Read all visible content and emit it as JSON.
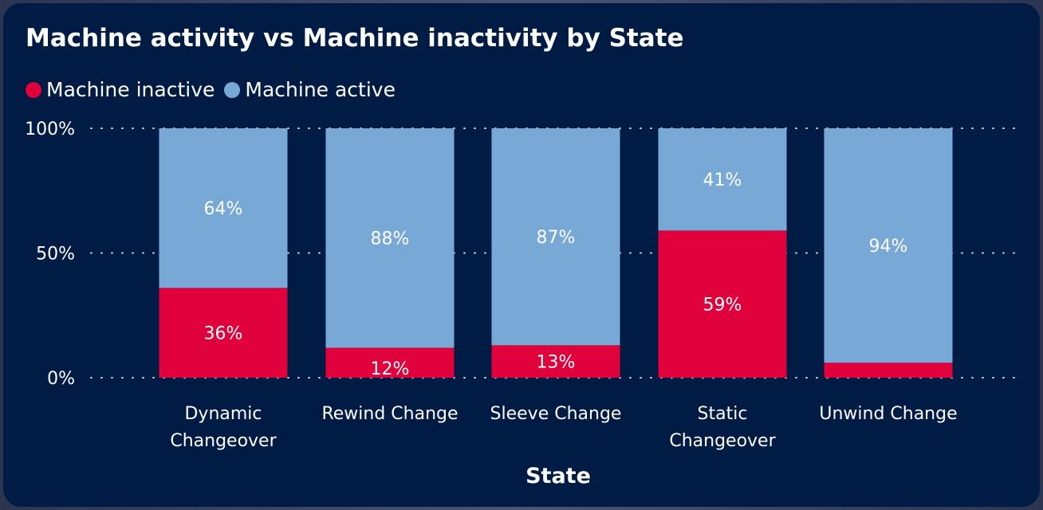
{
  "window": {
    "title": "Machine activity vs Machine inactivity by State"
  },
  "colors": {
    "background": "#001c44",
    "inactive": "#e0003c",
    "active": "#77a8d6",
    "text": "#ffffff",
    "grid": "#c8d2e0"
  },
  "chart_data": {
    "type": "bar",
    "stacked": "percent",
    "title": "Machine activity vs Machine inactivity by State",
    "xlabel": "State",
    "ylabel": "",
    "ylim": [
      0,
      100
    ],
    "yticks": [
      "0%",
      "50%",
      "100%"
    ],
    "ytick_values": [
      0,
      50,
      100
    ],
    "grid": true,
    "legend_position": "top-left",
    "categories": [
      [
        "Dynamic",
        "Changeover"
      ],
      [
        "Rewind Change"
      ],
      [
        "Sleeve Change"
      ],
      [
        "Static",
        "Changeover"
      ],
      [
        "Unwind Change"
      ]
    ],
    "series": [
      {
        "name": "Machine inactive",
        "color": "#e0003c",
        "values": [
          36,
          12,
          13,
          59,
          6
        ],
        "labels": [
          "36%",
          "12%",
          "13%",
          "59%",
          ""
        ]
      },
      {
        "name": "Machine active",
        "color": "#77a8d6",
        "values": [
          64,
          88,
          87,
          41,
          94
        ],
        "labels": [
          "64%",
          "88%",
          "87%",
          "41%",
          "94%"
        ]
      }
    ]
  }
}
